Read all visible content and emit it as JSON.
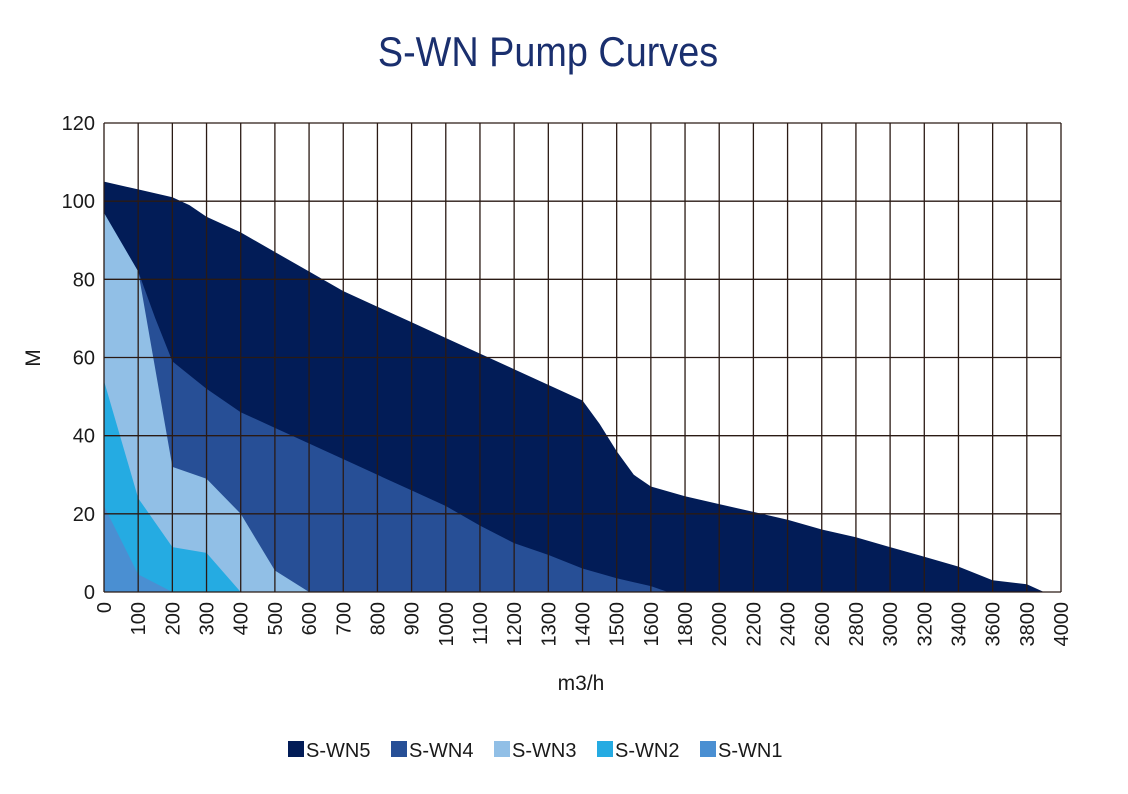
{
  "chart_data": {
    "type": "area",
    "title": "S-WN Pump Curves",
    "xlabel": "m3/h",
    "ylabel": "M",
    "x_tick_labels": [
      "0",
      "100",
      "200",
      "300",
      "400",
      "500",
      "600",
      "700",
      "800",
      "900",
      "1000",
      "1100",
      "1200",
      "1300",
      "1400",
      "1500",
      "1600",
      "1800",
      "2000",
      "2200",
      "2400",
      "2600",
      "2800",
      "3000",
      "3200",
      "3400",
      "3600",
      "3800",
      "4000"
    ],
    "y_tick_labels": [
      "0",
      "20",
      "40",
      "60",
      "80",
      "100",
      "120"
    ],
    "ylim": [
      0,
      120
    ],
    "grid": true,
    "legend_position": "bottom",
    "series": [
      {
        "name": "S-WN5",
        "color": "#021c57",
        "points": [
          [
            0,
            105
          ],
          [
            100,
            103
          ],
          [
            200,
            101
          ],
          [
            250,
            99
          ],
          [
            300,
            96
          ],
          [
            400,
            92
          ],
          [
            500,
            87
          ],
          [
            600,
            82
          ],
          [
            700,
            77
          ],
          [
            800,
            73
          ],
          [
            900,
            69
          ],
          [
            1000,
            65
          ],
          [
            1100,
            61
          ],
          [
            1200,
            57
          ],
          [
            1300,
            53
          ],
          [
            1400,
            49
          ],
          [
            1450,
            43
          ],
          [
            1500,
            36
          ],
          [
            1550,
            30
          ],
          [
            1600,
            27
          ],
          [
            1800,
            24.5
          ],
          [
            2000,
            22.5
          ],
          [
            2200,
            20.5
          ],
          [
            2400,
            18.5
          ],
          [
            2600,
            16
          ],
          [
            2800,
            14
          ],
          [
            3000,
            11.5
          ],
          [
            3200,
            9
          ],
          [
            3400,
            6.5
          ],
          [
            3600,
            3
          ],
          [
            3800,
            2
          ],
          [
            3900,
            0
          ]
        ]
      },
      {
        "name": "S-WN4",
        "color": "#274f96",
        "points": [
          [
            0,
            97
          ],
          [
            100,
            82
          ],
          [
            150,
            70
          ],
          [
            200,
            59
          ],
          [
            300,
            52
          ],
          [
            400,
            46
          ],
          [
            500,
            42
          ],
          [
            600,
            38
          ],
          [
            700,
            34
          ],
          [
            800,
            30
          ],
          [
            900,
            26
          ],
          [
            1000,
            22
          ],
          [
            1100,
            17
          ],
          [
            1200,
            12.5
          ],
          [
            1300,
            9.5
          ],
          [
            1400,
            6
          ],
          [
            1500,
            3.5
          ],
          [
            1600,
            1.5
          ],
          [
            1700,
            0
          ]
        ]
      },
      {
        "name": "S-WN3",
        "color": "#91bfe6",
        "points": [
          [
            0,
            97
          ],
          [
            100,
            82
          ],
          [
            200,
            32
          ],
          [
            300,
            29
          ],
          [
            400,
            20
          ],
          [
            500,
            5.5
          ],
          [
            600,
            0
          ]
        ]
      },
      {
        "name": "S-WN2",
        "color": "#25abe2",
        "points": [
          [
            0,
            54
          ],
          [
            100,
            24
          ],
          [
            200,
            11.5
          ],
          [
            300,
            10
          ],
          [
            400,
            0
          ]
        ]
      },
      {
        "name": "S-WN1",
        "color": "#4a8fd2",
        "points": [
          [
            0,
            22
          ],
          [
            100,
            4.5
          ],
          [
            200,
            0
          ]
        ]
      }
    ]
  }
}
